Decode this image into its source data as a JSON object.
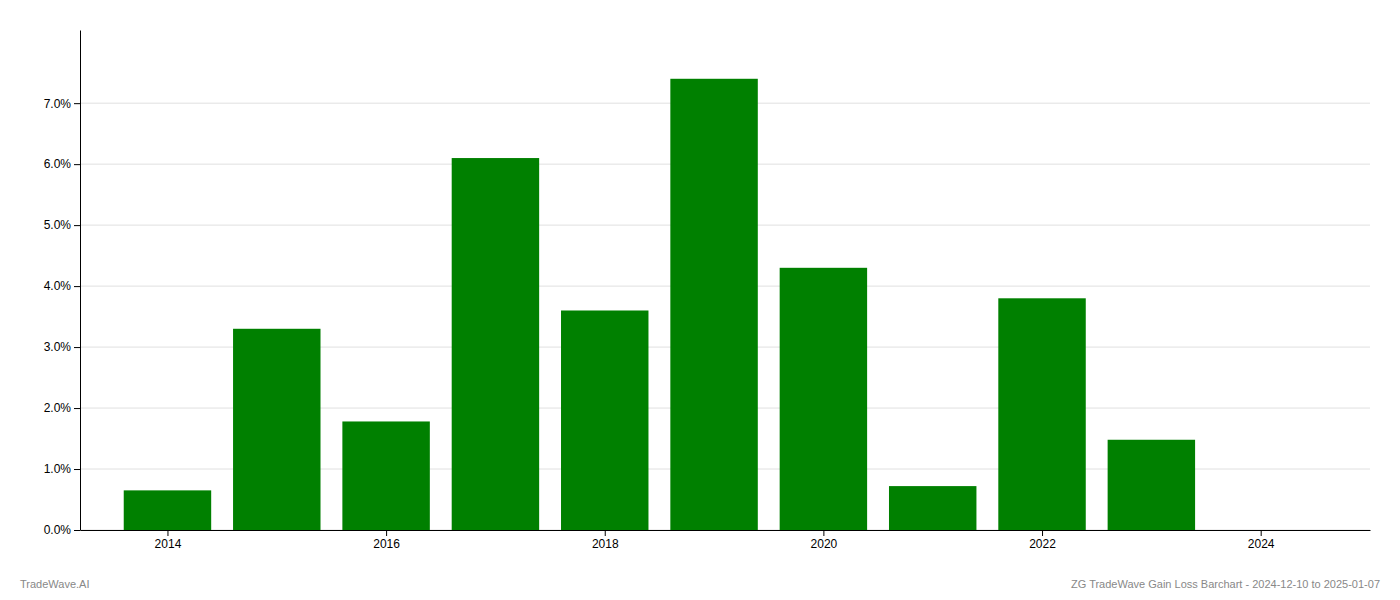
{
  "chart_data": {
    "type": "bar",
    "x": [
      2014,
      2015,
      2016,
      2017,
      2018,
      2019,
      2020,
      2021,
      2022,
      2023
    ],
    "values": [
      0.0065,
      0.033,
      0.0178,
      0.061,
      0.036,
      0.074,
      0.043,
      0.0072,
      0.038,
      0.0148
    ],
    "color": "#008000",
    "xlim": [
      2013.2,
      2025.0
    ],
    "xticks": [
      2014,
      2016,
      2018,
      2020,
      2022,
      2024
    ],
    "ylim": [
      0,
      0.082
    ],
    "yticks": [
      {
        "value": 0.0,
        "label": "0.0%"
      },
      {
        "value": 0.01,
        "label": "1.0%"
      },
      {
        "value": 0.02,
        "label": "2.0%"
      },
      {
        "value": 0.03,
        "label": "3.0%"
      },
      {
        "value": 0.04,
        "label": "4.0%"
      },
      {
        "value": 0.05,
        "label": "5.0%"
      },
      {
        "value": 0.06,
        "label": "6.0%"
      },
      {
        "value": 0.07,
        "label": "7.0%"
      }
    ],
    "grid": true,
    "annotations": [
      "TradeWave.AI",
      "ZG TradeWave Gain Loss Barchart - 2024-12-10 to 2025-01-07"
    ]
  }
}
